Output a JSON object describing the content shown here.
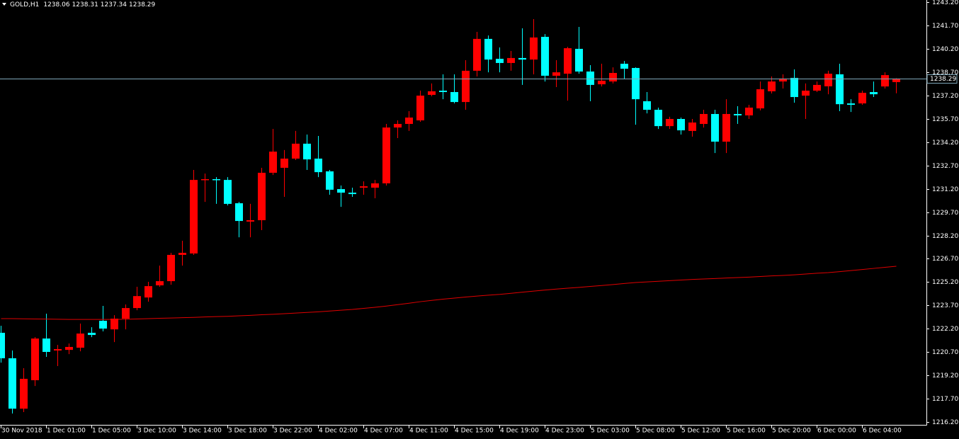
{
  "chart_data": {
    "type": "candlestick",
    "title": "GOLD,H1",
    "up_color": "#ff0000",
    "down_color": "#00ffff",
    "ma_color": "#e00000",
    "price_line_color": "#7fa7b9",
    "categories": [
      "30 Nov 2018",
      null,
      null,
      null,
      "1 Dec 01:00",
      null,
      null,
      null,
      "1 Dec 05:00",
      null,
      null,
      null,
      "3 Dec 10:00",
      null,
      null,
      null,
      "3 Dec 14:00",
      null,
      null,
      null,
      "3 Dec 18:00",
      null,
      null,
      null,
      "3 Dec 22:00",
      null,
      null,
      null,
      "4 Dec 02:00",
      null,
      null,
      null,
      "4 Dec 07:00",
      null,
      null,
      null,
      "4 Dec 11:00",
      null,
      null,
      null,
      "4 Dec 15:00",
      null,
      null,
      null,
      "4 Dec 19:00",
      null,
      null,
      null,
      "4 Dec 23:00",
      null,
      null,
      null,
      "5 Dec 03:00",
      null,
      null,
      null,
      "5 Dec 08:00",
      null,
      null,
      null,
      "5 Dec 12:00",
      null,
      null,
      null,
      "5 Dec 16:00",
      null,
      null,
      null,
      "5 Dec 20:00",
      null,
      null,
      null,
      "6 Dec 00:00",
      null,
      null,
      null,
      "6 Dec 04:00",
      null,
      null,
      null
    ],
    "open": [
      1221.94,
      1220.3,
      1217.06,
      1218.89,
      1221.57,
      1220.8,
      1220.84,
      1220.98,
      1221.94,
      1222.71,
      1222.16,
      1222.85,
      1223.53,
      1224.21,
      1224.99,
      1225.26,
      1226.95,
      1227.04,
      1231.77,
      1231.82,
      1231.77,
      1230.27,
      1229.09,
      1229.18,
      1232.23,
      1232.55,
      1233.14,
      1234.1,
      1233.14,
      1232.32,
      1231.18,
      1230.95,
      1231.27,
      1231.27,
      1231.55,
      1235.14,
      1235.37,
      1235.6,
      1237.24,
      1237.51,
      1237.42,
      1236.78,
      1238.79,
      1240.84,
      1239.56,
      1239.29,
      1239.61,
      1239.51,
      1240.97,
      1238.47,
      1238.6,
      1240.2,
      1238.74,
      1237.92,
      1238.1,
      1239.24,
      1238.97,
      1236.83,
      1236.28,
      1235.23,
      1235.69,
      1234.92,
      1235.37,
      1236.01,
      1234.23,
      1236.01,
      1235.92,
      1236.37,
      1237.47,
      1238.1,
      1238.33,
      1237.19,
      1237.51,
      1237.79,
      1238.56,
      1236.69,
      1236.69,
      1237.42,
      1237.78,
      1238.06
    ],
    "high": [
      1222.39,
      1220.8,
      1219.66,
      1221.66,
      1223.17,
      1221.16,
      1221.25,
      1222.53,
      1222.3,
      1223.67,
      1223.07,
      1223.76,
      1224.9,
      1225.22,
      1226.26,
      1227.08,
      1227.86,
      1232.41,
      1232.18,
      1231.95,
      1231.95,
      1230.36,
      1230.23,
      1232.55,
      1235.05,
      1233.69,
      1234.92,
      1234.69,
      1234.6,
      1232.41,
      1231.41,
      1231.27,
      1231.68,
      1231.77,
      1235.37,
      1235.6,
      1236.19,
      1237.51,
      1237.97,
      1238.56,
      1238.56,
      1239.47,
      1241.29,
      1241.06,
      1240.29,
      1240.06,
      1241.52,
      1242.11,
      1241.15,
      1239.47,
      1240.33,
      1241.61,
      1239.15,
      1239.24,
      1239.01,
      1239.42,
      1239.01,
      1237.42,
      1236.42,
      1235.83,
      1235.78,
      1235.69,
      1236.28,
      1236.28,
      1236.96,
      1236.51,
      1236.6,
      1238.1,
      1238.42,
      1238.56,
      1238.88,
      1237.97,
      1238.1,
      1238.79,
      1239.24,
      1236.96,
      1237.51,
      1238.1,
      1238.69,
      1238.31
    ],
    "low": [
      1220.02,
      1216.75,
      1216.84,
      1218.52,
      1220.39,
      1219.8,
      1220.57,
      1220.75,
      1221.66,
      1222.03,
      1221.34,
      1222.16,
      1223.39,
      1223.94,
      1224.9,
      1225.03,
      1226.26,
      1226.95,
      1230.36,
      1230.23,
      1230.13,
      1228.08,
      1228.08,
      1228.54,
      1232.09,
      1230.68,
      1233.05,
      1232.41,
      1231.95,
      1230.82,
      1230.04,
      1230.68,
      1230.82,
      1230.59,
      1231.41,
      1234.46,
      1234.92,
      1235.51,
      1237.15,
      1236.96,
      1236.69,
      1236.28,
      1238.42,
      1238.69,
      1238.69,
      1238.79,
      1237.88,
      1238.56,
      1238.1,
      1237.74,
      1236.87,
      1238.6,
      1236.83,
      1237.78,
      1237.97,
      1238.24,
      1235.32,
      1236.05,
      1235.05,
      1235.05,
      1234.69,
      1234.55,
      1235.14,
      1233.5,
      1233.5,
      1235.37,
      1235.69,
      1236.24,
      1237.33,
      1237.65,
      1236.74,
      1235.69,
      1237.42,
      1237.28,
      1236.19,
      1236.14,
      1236.6,
      1237.1,
      1237.65,
      1237.34
    ],
    "close": [
      1220.3,
      1217.06,
      1218.98,
      1221.57,
      1220.71,
      1220.89,
      1221.03,
      1221.89,
      1221.8,
      1222.21,
      1222.85,
      1223.53,
      1224.3,
      1224.94,
      1225.26,
      1226.95,
      1227.08,
      1231.77,
      1231.82,
      1231.77,
      1230.23,
      1229.13,
      1229.18,
      1232.23,
      1233.59,
      1233.14,
      1234.1,
      1233.09,
      1232.27,
      1231.14,
      1230.95,
      1230.86,
      1231.36,
      1231.55,
      1235.14,
      1235.37,
      1235.78,
      1237.19,
      1237.47,
      1237.42,
      1236.78,
      1238.79,
      1240.84,
      1239.51,
      1239.29,
      1239.61,
      1239.51,
      1240.93,
      1238.47,
      1238.69,
      1240.24,
      1238.74,
      1237.88,
      1238.15,
      1238.65,
      1238.92,
      1236.96,
      1236.28,
      1235.23,
      1235.69,
      1234.96,
      1235.46,
      1236.01,
      1234.23,
      1236.01,
      1235.92,
      1236.42,
      1237.6,
      1238.1,
      1238.29,
      1237.1,
      1237.51,
      1237.88,
      1238.6,
      1236.64,
      1236.6,
      1237.37,
      1237.28,
      1238.51,
      1238.29
    ],
    "ma": [
      1222.85,
      1222.85,
      1222.84,
      1222.83,
      1222.82,
      1222.81,
      1222.8,
      1222.8,
      1222.8,
      1222.8,
      1222.8,
      1222.81,
      1222.83,
      1222.85,
      1222.87,
      1222.89,
      1222.91,
      1222.93,
      1222.96,
      1222.98,
      1223.0,
      1223.03,
      1223.06,
      1223.1,
      1223.13,
      1223.17,
      1223.21,
      1223.25,
      1223.29,
      1223.34,
      1223.39,
      1223.44,
      1223.51,
      1223.58,
      1223.66,
      1223.75,
      1223.84,
      1223.94,
      1224.02,
      1224.1,
      1224.17,
      1224.24,
      1224.3,
      1224.36,
      1224.41,
      1224.48,
      1224.55,
      1224.62,
      1224.69,
      1224.75,
      1224.81,
      1224.86,
      1224.92,
      1224.98,
      1225.04,
      1225.11,
      1225.17,
      1225.21,
      1225.25,
      1225.29,
      1225.33,
      1225.37,
      1225.4,
      1225.43,
      1225.46,
      1225.49,
      1225.52,
      1225.56,
      1225.6,
      1225.63,
      1225.67,
      1225.72,
      1225.77,
      1225.81,
      1225.87,
      1225.94,
      1226.01,
      1226.08,
      1226.15,
      1226.22
    ],
    "ylim": [
      1216.02,
      1243.34
    ],
    "yticks": [
      {
        "value": 1243.2,
        "label": "1243.20"
      },
      {
        "value": 1241.7,
        "label": "1241.70"
      },
      {
        "value": 1240.2,
        "label": "1240.20"
      },
      {
        "value": 1238.7,
        "label": "1238.70"
      },
      {
        "value": 1237.2,
        "label": "1237.20"
      },
      {
        "value": 1235.7,
        "label": "1235.70"
      },
      {
        "value": 1234.2,
        "label": "1234.20"
      },
      {
        "value": 1232.7,
        "label": "1232.70"
      },
      {
        "value": 1231.2,
        "label": "1231.20"
      },
      {
        "value": 1229.7,
        "label": "1229.70"
      },
      {
        "value": 1228.2,
        "label": "1228.20"
      },
      {
        "value": 1226.7,
        "label": "1226.70"
      },
      {
        "value": 1225.2,
        "label": "1225.20"
      },
      {
        "value": 1223.7,
        "label": "1223.70"
      },
      {
        "value": 1222.2,
        "label": "1222.20"
      },
      {
        "value": 1220.7,
        "label": "1220.70"
      },
      {
        "value": 1219.2,
        "label": "1219.20"
      },
      {
        "value": 1217.7,
        "label": "1217.70"
      },
      {
        "value": 1216.2,
        "label": "1216.20"
      }
    ]
  }
}
